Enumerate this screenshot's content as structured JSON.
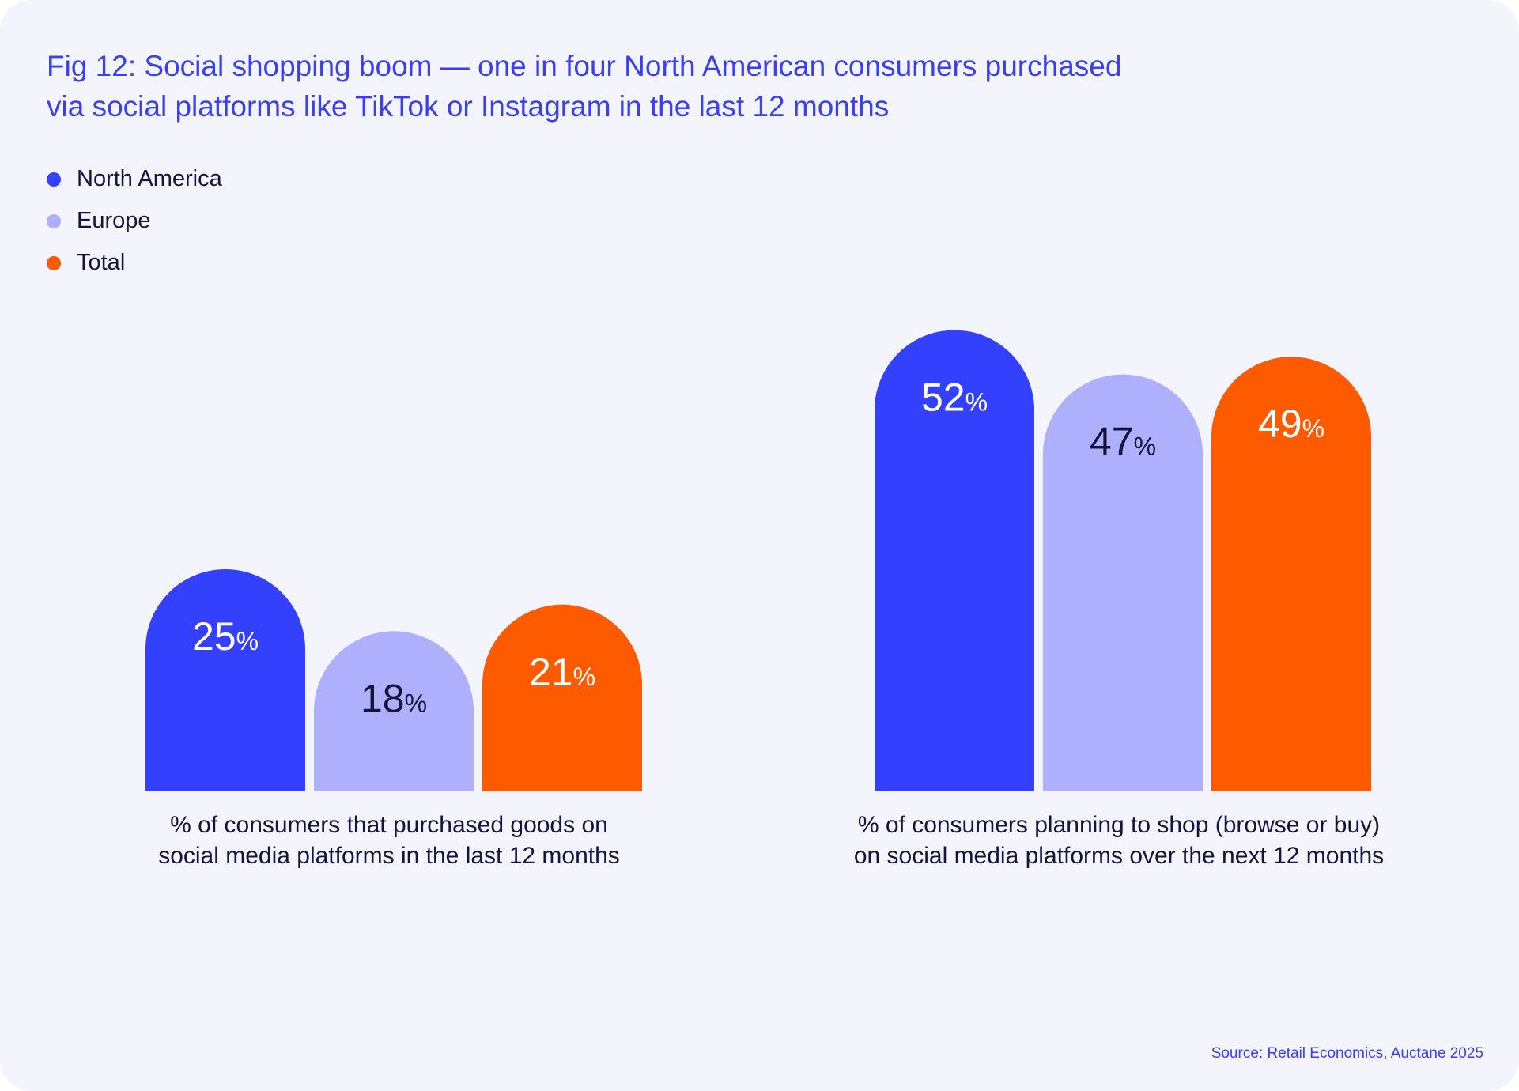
{
  "title_lines": [
    "Fig 12: Social shopping boom — one in four North American consumers purchased",
    "via social platforms like TikTok or Instagram in the last 12 months"
  ],
  "source": "Source: Retail Economics, Auctane 2025",
  "colors": {
    "background": "#f3f4fc",
    "title": "#3a3ff0",
    "north_america": "#3340fd",
    "europe": "#afb0fd",
    "total": "#fe5a00"
  },
  "chart_data": {
    "type": "bar",
    "title": "Fig 12: Social shopping boom — one in four North American consumers purchased via social platforms like TikTok or Instagram in the last 12 months",
    "categories": [
      [
        "% of consumers that purchased goods on",
        "social media platforms in the last 12 months"
      ],
      [
        "% of consumers planning to shop (browse or buy)",
        "on social media platforms over the next 12 months"
      ]
    ],
    "series": [
      {
        "name": "North America",
        "color": "#3340fd",
        "label_color": "#ffffff",
        "values": [
          25,
          52
        ]
      },
      {
        "name": "Europe",
        "color": "#afb0fd",
        "label_color": "#14143c",
        "values": [
          18,
          47
        ]
      },
      {
        "name": "Total",
        "color": "#fe5a00",
        "label_color": "#ffffff",
        "values": [
          21,
          49
        ]
      }
    ],
    "value_suffix": "%",
    "ylim": [
      0,
      52
    ],
    "legend_position": "top-left",
    "grid": false
  }
}
